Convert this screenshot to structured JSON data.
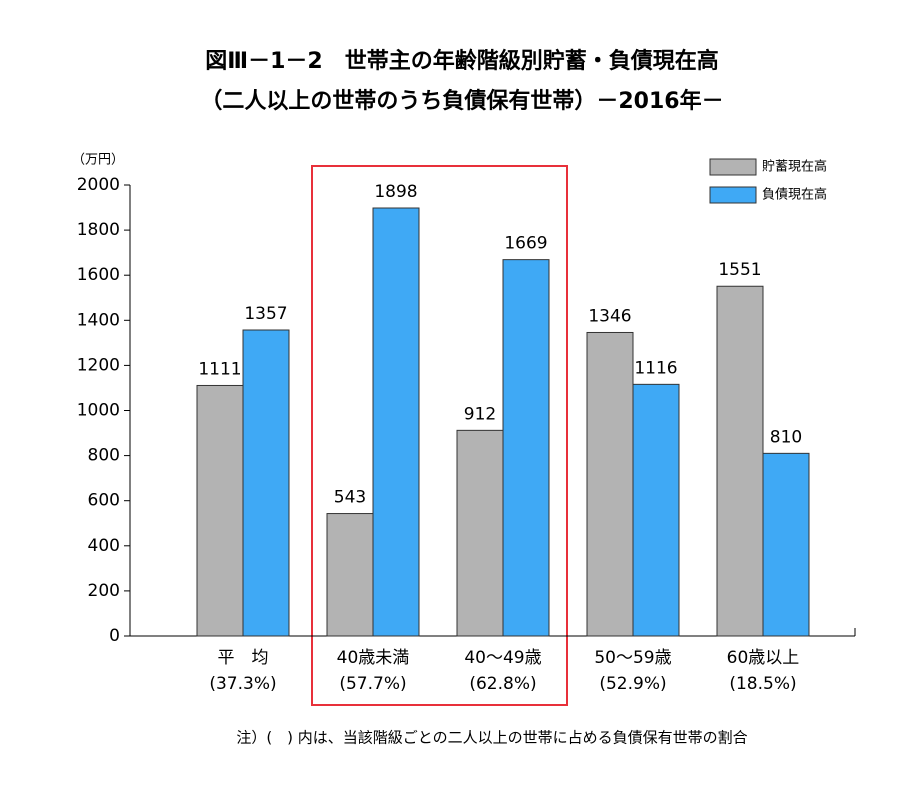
{
  "chart_data": {
    "type": "bar",
    "title": "図Ⅲ－1－2　世帯主の年齢階級別貯蓄・負債現在高",
    "subtitle": "（二人以上の世帯のうち負債保有世帯）－2016年－",
    "y_label": "（万円）",
    "categories": [
      "平　均",
      "40歳未満",
      "40～49歳",
      "50～59歳",
      "60歳以上"
    ],
    "category_notes": [
      "(37.3%)",
      "(57.7%)",
      "(62.8%)",
      "(52.9%)",
      "(18.5%)"
    ],
    "series": [
      {
        "name": "貯蓄現在高",
        "color": "#b3b3b3",
        "values": [
          1111,
          543,
          912,
          1346,
          1551
        ]
      },
      {
        "name": "負債現在高",
        "color": "#3fa9f5",
        "values": [
          1357,
          1898,
          1669,
          1116,
          810
        ]
      }
    ],
    "ylim": [
      0,
      2000
    ],
    "yticks": [
      0,
      200,
      400,
      600,
      800,
      1000,
      1200,
      1400,
      1600,
      1800,
      2000
    ],
    "legend": "top-right",
    "note": "注）(　) 内は、当該階級ごとの二人以上の世帯に占める負債保有世帯の割合"
  }
}
